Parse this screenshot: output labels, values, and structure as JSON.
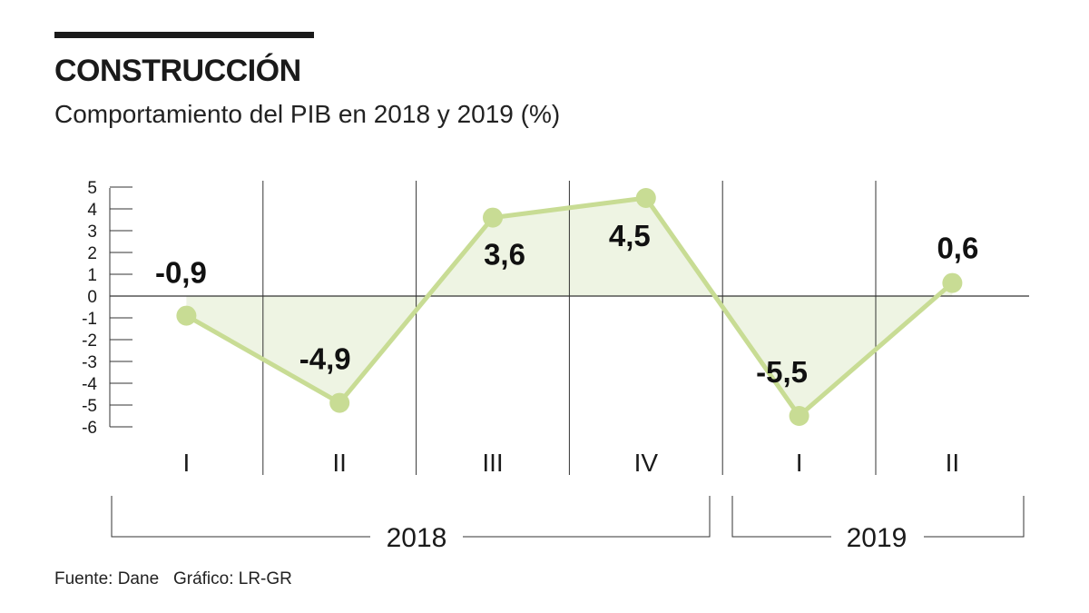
{
  "header": {
    "title": "CONSTRUCCIÓN",
    "subtitle": "Comportamiento del PIB en 2018 y 2019 (%)"
  },
  "footer": {
    "source": "Fuente: Dane   Gráfico: LR-GR"
  },
  "colors": {
    "line": "#c8dc94",
    "fill": "#eef4e3",
    "text": "#1a1a1a"
  },
  "chart_data": {
    "type": "line",
    "title": "CONSTRUCCIÓN",
    "subtitle": "Comportamiento del PIB en 2018 y 2019 (%)",
    "categories": [
      "I",
      "II",
      "III",
      "IV",
      "I",
      "II"
    ],
    "values": [
      -0.9,
      -4.9,
      3.6,
      4.5,
      -5.5,
      0.6
    ],
    "value_labels": [
      "-0,9",
      "-4,9",
      "3,6",
      "4,5",
      "-5,5",
      "0,6"
    ],
    "yticks": [
      5,
      4,
      3,
      2,
      1,
      0,
      -1,
      -2,
      -3,
      -4,
      -5,
      -6
    ],
    "ytick_labels": [
      "5",
      "4",
      "3",
      "2",
      "1",
      "0",
      "-1",
      "-2",
      "-3",
      "-4",
      "-5",
      "-6"
    ],
    "ylim": [
      -6,
      5
    ],
    "groups": [
      {
        "label": "2018",
        "categories": [
          "I",
          "II",
          "III",
          "IV"
        ]
      },
      {
        "label": "2019",
        "categories": [
          "I",
          "II"
        ]
      }
    ],
    "xlabel": "",
    "ylabel": "",
    "grid": "vertical separators",
    "legend": "none"
  }
}
